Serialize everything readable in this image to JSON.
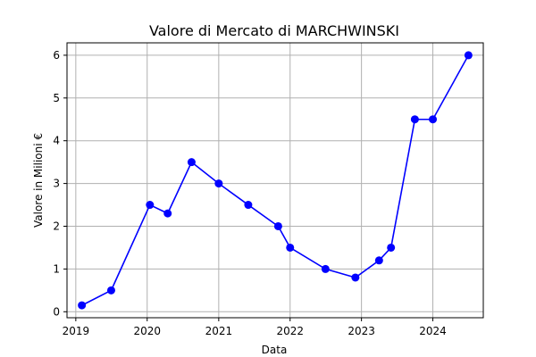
{
  "chart_data": {
    "type": "line",
    "title": "Valore di Mercato di MARCHWINSKI",
    "xlabel": "Data",
    "ylabel": "Valore in Milioni €",
    "grid": true,
    "color": "#0000ff",
    "x_ticks": [
      "2019",
      "2020",
      "2021",
      "2022",
      "2023",
      "2024"
    ],
    "y_ticks": [
      "0",
      "1",
      "2",
      "3",
      "4",
      "5",
      "6"
    ],
    "xlim": [
      "2018-11-17",
      "2024-09-15"
    ],
    "ylim": [
      -0.14,
      6.29
    ],
    "series": [
      {
        "x": [
          "2019-02-01",
          "2019-07-01",
          "2020-01-15",
          "2020-04-15",
          "2020-08-15",
          "2021-01-01",
          "2021-06-01",
          "2021-11-01",
          "2022-01-01",
          "2022-07-01",
          "2022-12-01",
          "2023-04-01",
          "2023-06-01",
          "2023-10-01",
          "2024-01-01",
          "2024-07-01"
        ],
        "values": [
          0.15,
          0.5,
          2.5,
          2.3,
          3.5,
          3.0,
          2.5,
          2.0,
          1.5,
          1.0,
          0.8,
          1.2,
          1.5,
          4.5,
          4.5,
          6.0
        ]
      }
    ]
  }
}
